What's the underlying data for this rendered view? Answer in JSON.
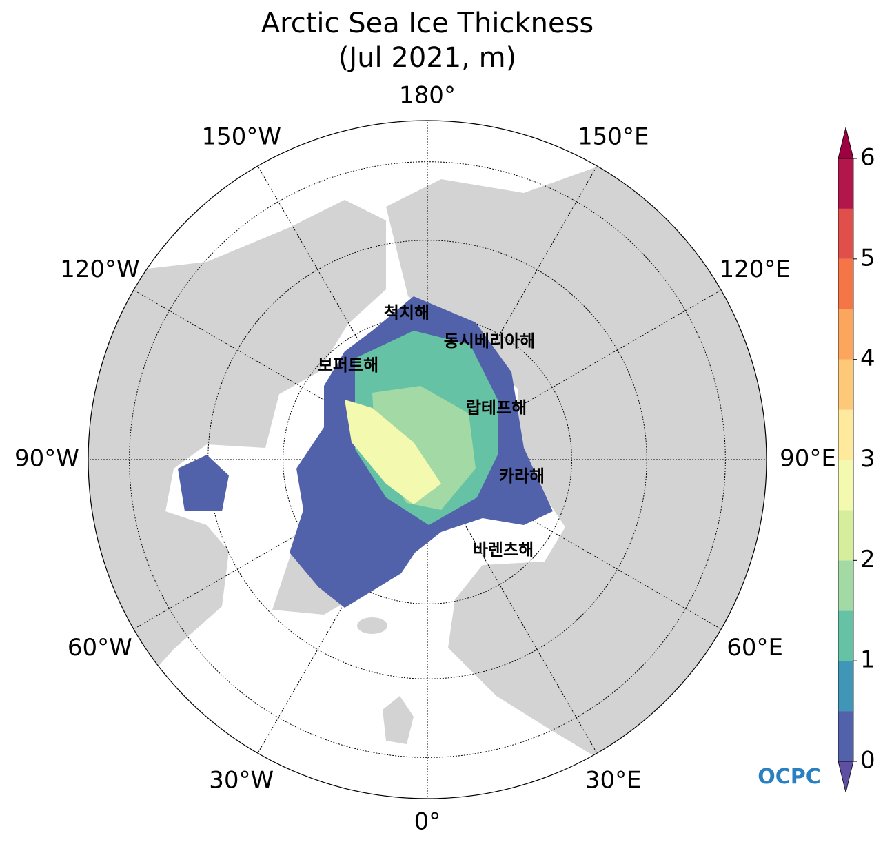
{
  "chart_data": {
    "type": "polar-map",
    "title": "Arctic Sea Ice Thickness",
    "subtitle": "(Jul 2021, m)",
    "lat_bounds": [
      45,
      90
    ],
    "lat_gridlines": [
      80,
      70,
      60,
      50
    ],
    "lon_ticks": [
      {
        "value": 180,
        "label": "180°"
      },
      {
        "value": 150,
        "label": "150°E"
      },
      {
        "value": 120,
        "label": "120°E"
      },
      {
        "value": 90,
        "label": "90°E"
      },
      {
        "value": 60,
        "label": "60°E"
      },
      {
        "value": 30,
        "label": "30°E"
      },
      {
        "value": 0,
        "label": "0°"
      },
      {
        "value": -30,
        "label": "30°W"
      },
      {
        "value": -60,
        "label": "60°W"
      },
      {
        "value": -90,
        "label": "90°W"
      },
      {
        "value": -120,
        "label": "120°W"
      },
      {
        "value": -150,
        "label": "150°W"
      }
    ],
    "sea_labels": [
      "척치해",
      "동시베리아해",
      "보퍼트해",
      "랍테프해",
      "카라해",
      "바렌츠해"
    ],
    "colorbar": {
      "boundaries": [
        0,
        0.5,
        1,
        1.5,
        2,
        2.5,
        3,
        3.5,
        4,
        4.5,
        5,
        5.5,
        6
      ],
      "colors": [
        "#5162ab",
        "#3f96b7",
        "#66c2a5",
        "#a3d9a4",
        "#d6ee9b",
        "#f3fab0",
        "#fee99d",
        "#fdc877",
        "#fca55d",
        "#f57547",
        "#e04f4a",
        "#b3164b"
      ],
      "under_color": "#5e4fa2",
      "over_color": "#9e0142",
      "ticks": [
        0,
        1,
        2,
        3,
        4,
        5,
        6
      ]
    }
  },
  "logo": "OCPC"
}
